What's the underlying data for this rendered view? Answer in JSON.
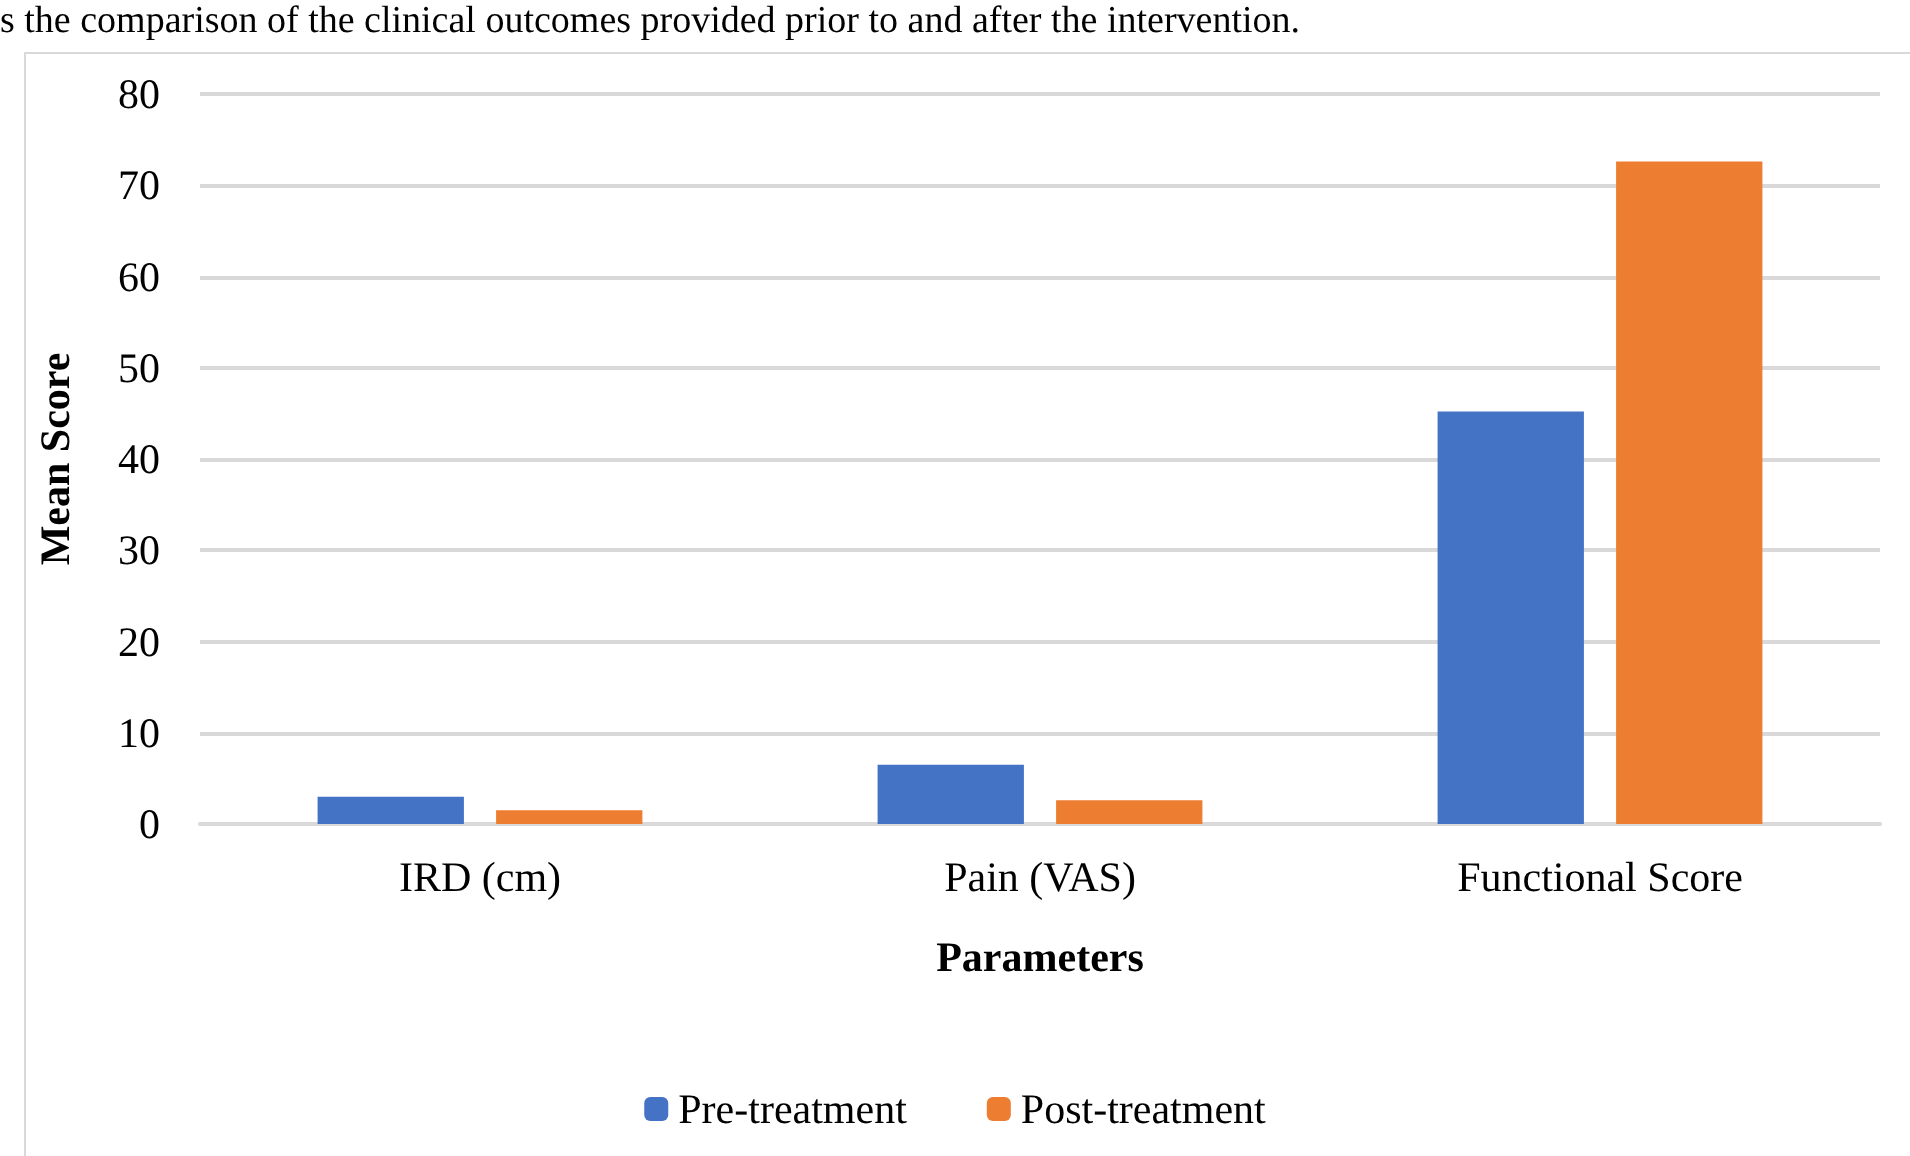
{
  "chart_data": {
    "type": "bar",
    "annotations": [
      "s the comparison of the clinical outcomes provided prior to and after the intervention."
    ],
    "xlabel": "Parameters",
    "ylabel": "Mean Score",
    "categories": [
      "IRD (cm)",
      "Pain (VAS)",
      "Functional Score"
    ],
    "series": [
      {
        "name": "Pre-treatment",
        "color": "#4472c4",
        "values": [
          3.0,
          6.5,
          45.2
        ]
      },
      {
        "name": "Post-treatment",
        "color": "#ed7d31",
        "values": [
          1.5,
          2.6,
          72.6
        ]
      }
    ],
    "ylim": [
      0,
      80
    ],
    "yticks": [
      0,
      10,
      20,
      30,
      40,
      50,
      60,
      70,
      80
    ],
    "grid": "y",
    "legend": "bottom"
  }
}
